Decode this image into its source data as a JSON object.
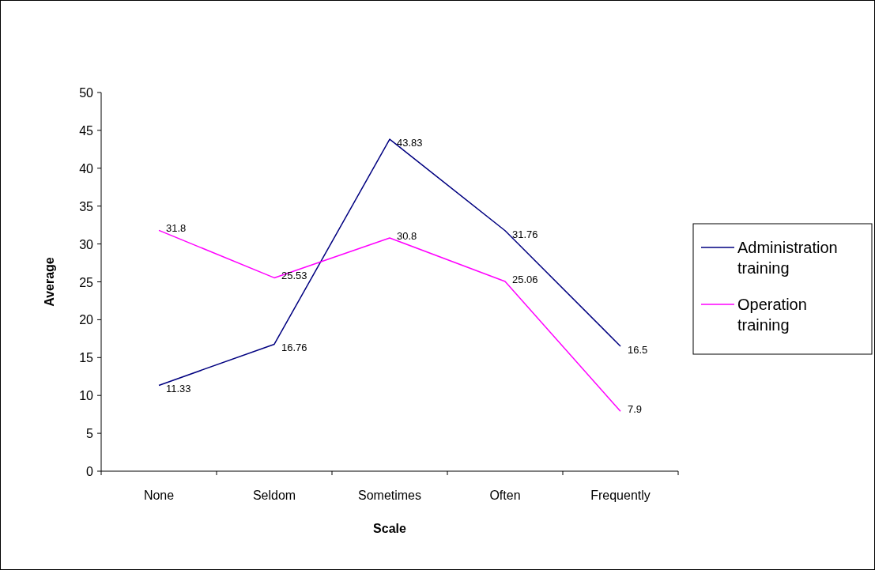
{
  "chart_data": {
    "type": "line",
    "xlabel": "Scale",
    "ylabel": "Average",
    "categories": [
      "None",
      "Seldom",
      "Sometimes",
      "Often",
      "Frequently"
    ],
    "series": [
      {
        "name": "Administration training",
        "color": "#000080",
        "values": [
          11.33,
          16.76,
          43.83,
          31.76,
          16.5
        ]
      },
      {
        "name": "Operation training",
        "color": "#ff00ff",
        "values": [
          31.8,
          25.53,
          30.8,
          25.06,
          7.9
        ]
      }
    ],
    "ylim": [
      0,
      50
    ],
    "yticks": [
      0,
      5,
      10,
      15,
      20,
      25,
      30,
      35,
      40,
      45,
      50
    ],
    "grid": false,
    "legend": "right",
    "data_labels": true,
    "marker": "none",
    "line_style": "solid"
  }
}
